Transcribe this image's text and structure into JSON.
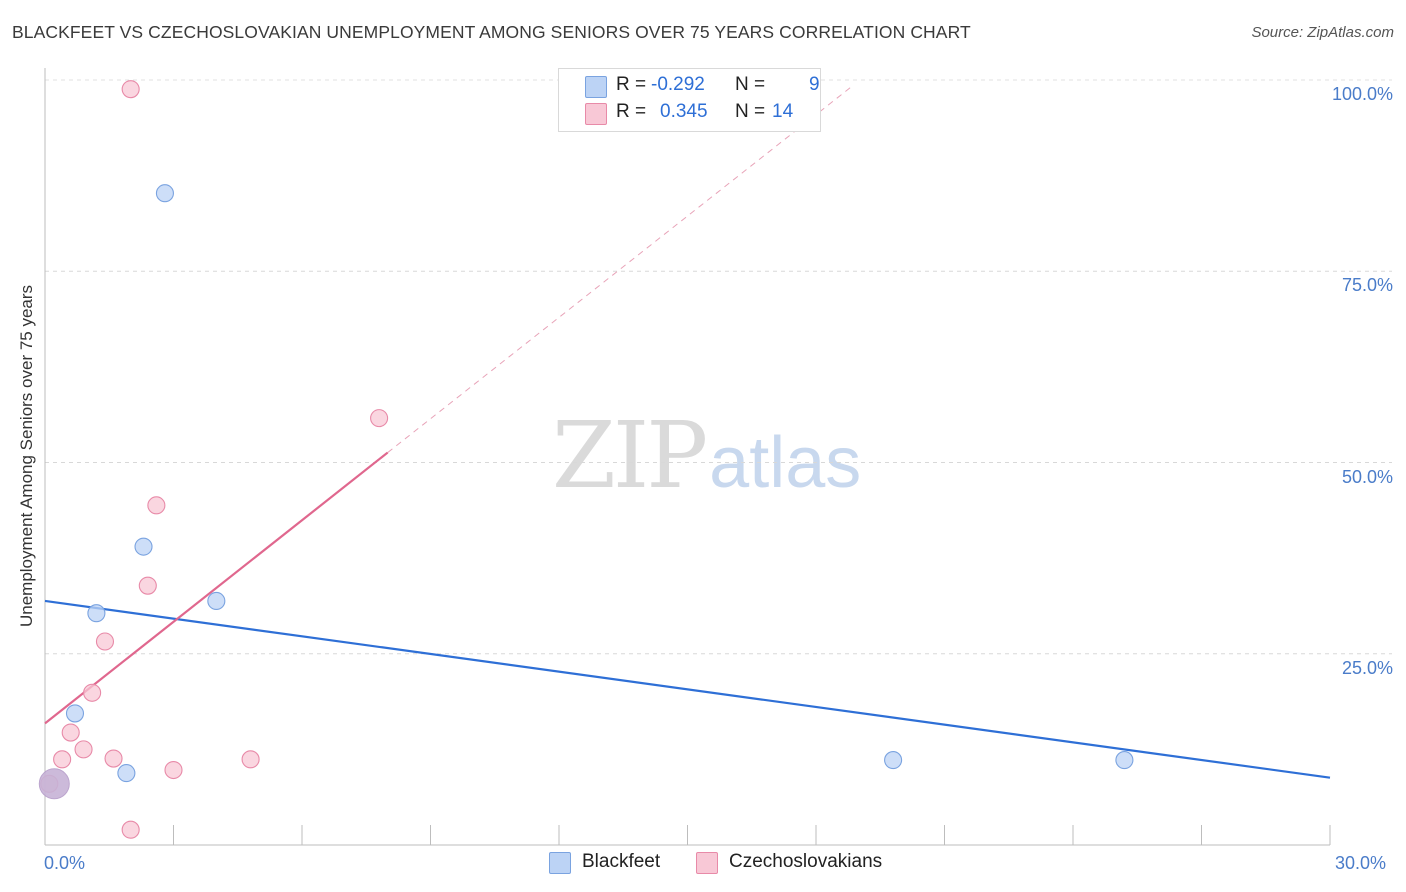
{
  "title": "BLACKFEET VS CZECHOSLOVAKIAN UNEMPLOYMENT AMONG SENIORS OVER 75 YEARS CORRELATION CHART",
  "source": "Source: ZipAtlas.com",
  "watermark": {
    "zip": "ZIP",
    "atlas": "atlas"
  },
  "legend": {
    "rows": [
      {
        "r_label": "R =",
        "r_value": "-0.292",
        "n_label": "N =",
        "n_value": "9",
        "fill": "#bcd3f5",
        "stroke": "#7aa3e0"
      },
      {
        "r_label": "R =",
        "r_value": "0.345",
        "n_label": "N =",
        "n_value": "14",
        "fill": "#f8c8d6",
        "stroke": "#e88aa8"
      }
    ]
  },
  "bottom_legend": [
    {
      "label": "Blackfeet",
      "fill": "#bcd3f5",
      "stroke": "#7aa3e0"
    },
    {
      "label": "Czechoslovakians",
      "fill": "#f8c8d6",
      "stroke": "#e88aa8"
    }
  ],
  "chart_data": {
    "type": "scatter",
    "title": "BLACKFEET VS CZECHOSLOVAKIAN UNEMPLOYMENT AMONG SENIORS OVER 75 YEARS CORRELATION CHART",
    "xlabel": "",
    "ylabel": "Unemployment Among Seniors over 75 years",
    "xlim": [
      0,
      30
    ],
    "ylim": [
      0,
      100
    ],
    "x_tick_labels": [
      "0.0%",
      "30.0%"
    ],
    "y_tick_values": [
      25,
      50,
      75,
      100
    ],
    "y_tick_labels": [
      "25.0%",
      "50.0%",
      "75.0%",
      "100.0%"
    ],
    "grid": true,
    "series": [
      {
        "name": "Blackfeet",
        "color": "#7aa3e0",
        "fill": "#bcd3f5",
        "line_color": "#2e6fd6",
        "points": [
          {
            "x": 0.1,
            "y": 8.0,
            "big": true
          },
          {
            "x": 0.7,
            "y": 17.2
          },
          {
            "x": 1.2,
            "y": 30.3
          },
          {
            "x": 1.9,
            "y": 9.4
          },
          {
            "x": 2.3,
            "y": 39.0
          },
          {
            "x": 2.8,
            "y": 85.2
          },
          {
            "x": 4.0,
            "y": 31.9
          },
          {
            "x": 19.8,
            "y": 11.1
          },
          {
            "x": 25.2,
            "y": 11.1
          }
        ],
        "trend": {
          "x0": 0,
          "y0": 31.9,
          "x1": 30,
          "y1": 8.8
        }
      },
      {
        "name": "Czechoslovakians",
        "color": "#e88aa8",
        "fill": "#f8c8d6",
        "line_color": "#e0678e",
        "points": [
          {
            "x": 0.1,
            "y": 8.0
          },
          {
            "x": 0.4,
            "y": 11.2
          },
          {
            "x": 0.6,
            "y": 14.7
          },
          {
            "x": 0.9,
            "y": 12.5
          },
          {
            "x": 1.1,
            "y": 19.9
          },
          {
            "x": 1.4,
            "y": 26.6
          },
          {
            "x": 1.6,
            "y": 11.3
          },
          {
            "x": 2.0,
            "y": 2.0
          },
          {
            "x": 2.0,
            "y": 98.8
          },
          {
            "x": 2.4,
            "y": 33.9
          },
          {
            "x": 2.6,
            "y": 44.4
          },
          {
            "x": 3.0,
            "y": 9.8
          },
          {
            "x": 4.8,
            "y": 11.2
          },
          {
            "x": 7.8,
            "y": 55.8
          }
        ],
        "trend": {
          "x0": 0,
          "y0": 15.9,
          "x1": 8.0,
          "y1": 51.3
        },
        "trend_extension": {
          "x0": 8.0,
          "y0": 51.3,
          "x1": 18.8,
          "y1": 99.0
        }
      }
    ]
  }
}
